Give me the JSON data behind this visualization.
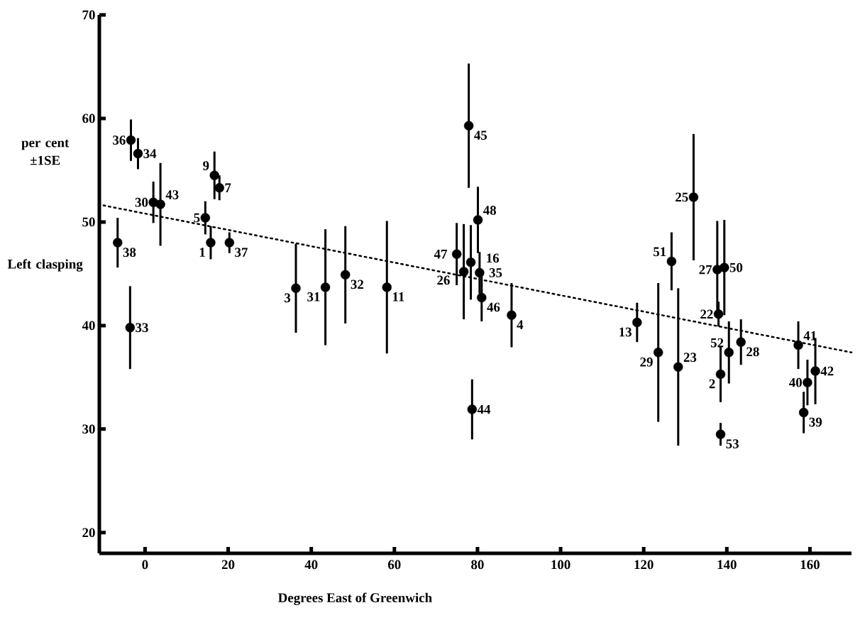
{
  "chart_data": {
    "type": "scatter",
    "xlabel": "Degrees East of Greenwich",
    "ylabel": "per cent ±1SE",
    "xlim": [
      -11,
      170
    ],
    "ylim": [
      18,
      70
    ],
    "xticks": [
      0,
      20,
      40,
      60,
      80,
      100,
      120,
      140,
      160
    ],
    "yticks": [
      20,
      30,
      40,
      50,
      60,
      70
    ],
    "marker": "circle",
    "series": [
      {
        "type": "scatter",
        "color": "#000000",
        "x": [
          -3.4,
          -1.7,
          2.0,
          3.7,
          -6.6,
          -3.6,
          16.7,
          17.9,
          14.5,
          15.8,
          20.3,
          36.3,
          43.4,
          48.2,
          58.2,
          77.9,
          80.1,
          75.0,
          76.7,
          78.4,
          80.5,
          81.0,
          78.7,
          88.2,
          132.0,
          126.7,
          137.7,
          139.4,
          138.0,
          118.4,
          123.5,
          128.3,
          140.5,
          138.5,
          143.4,
          138.5,
          157.2,
          161.3,
          159.4,
          158.5
        ],
        "values": [
          57.9,
          56.6,
          51.9,
          51.7,
          48.0,
          39.8,
          54.5,
          53.3,
          50.4,
          48.0,
          48.0,
          43.6,
          43.7,
          44.9,
          43.7,
          59.3,
          50.2,
          46.9,
          45.2,
          46.1,
          45.1,
          42.7,
          31.9,
          41.0,
          52.4,
          46.2,
          45.4,
          45.6,
          41.1,
          40.3,
          37.4,
          36.0,
          37.4,
          35.3,
          38.4,
          29.5,
          38.1,
          35.6,
          34.5,
          31.6
        ],
        "errors": [
          2.0,
          1.5,
          2.0,
          4.0,
          2.4,
          4.0,
          2.3,
          1.2,
          1.6,
          1.6,
          1.0,
          4.3,
          5.6,
          4.7,
          6.4,
          6.0,
          3.2,
          3.0,
          4.6,
          3.6,
          2.0,
          2.3,
          2.9,
          3.1,
          6.1,
          2.8,
          4.7,
          4.6,
          1.2,
          1.9,
          6.7,
          7.6,
          3.0,
          2.7,
          2.2,
          1.1,
          2.3,
          3.2,
          2.2,
          2.0
        ]
      },
      {
        "type": "line",
        "color": "#000000",
        "line_style": "dotted",
        "marker": "none",
        "x": [
          -10,
          170
        ],
        "values": [
          51.6,
          37.4
        ]
      }
    ],
    "annotations": [
      {
        "text": "36",
        "x": -3.4,
        "y": 57.9
      },
      {
        "text": "34",
        "x": -1.7,
        "y": 56.6
      },
      {
        "text": "30",
        "x": 2.0,
        "y": 51.9
      },
      {
        "text": "43",
        "x": 3.7,
        "y": 51.7
      },
      {
        "text": "38",
        "x": -6.6,
        "y": 48.0
      },
      {
        "text": "33",
        "x": -3.6,
        "y": 39.8
      },
      {
        "text": "9",
        "x": 16.7,
        "y": 54.5
      },
      {
        "text": "7",
        "x": 17.9,
        "y": 53.3
      },
      {
        "text": "5",
        "x": 14.5,
        "y": 50.4
      },
      {
        "text": "1",
        "x": 15.8,
        "y": 48.0
      },
      {
        "text": "37",
        "x": 20.3,
        "y": 48.0
      },
      {
        "text": "3",
        "x": 36.3,
        "y": 43.6
      },
      {
        "text": "31",
        "x": 43.4,
        "y": 43.7
      },
      {
        "text": "32",
        "x": 48.2,
        "y": 44.9
      },
      {
        "text": "11",
        "x": 58.2,
        "y": 43.7
      },
      {
        "text": "45",
        "x": 77.9,
        "y": 59.3
      },
      {
        "text": "48",
        "x": 80.1,
        "y": 50.2
      },
      {
        "text": "47",
        "x": 75.0,
        "y": 46.9
      },
      {
        "text": "26",
        "x": 76.7,
        "y": 45.2
      },
      {
        "text": "16",
        "x": 78.4,
        "y": 46.1
      },
      {
        "text": "35",
        "x": 80.5,
        "y": 45.1
      },
      {
        "text": "46",
        "x": 81.0,
        "y": 42.7
      },
      {
        "text": "44",
        "x": 78.7,
        "y": 31.9
      },
      {
        "text": "4",
        "x": 88.2,
        "y": 41.0
      },
      {
        "text": "25",
        "x": 132.0,
        "y": 52.4
      },
      {
        "text": "51",
        "x": 126.7,
        "y": 46.2
      },
      {
        "text": "27",
        "x": 137.7,
        "y": 45.4
      },
      {
        "text": "50",
        "x": 139.4,
        "y": 45.6
      },
      {
        "text": "22",
        "x": 138.0,
        "y": 41.1
      },
      {
        "text": "13",
        "x": 118.4,
        "y": 40.3
      },
      {
        "text": "29",
        "x": 123.5,
        "y": 37.4
      },
      {
        "text": "23",
        "x": 128.3,
        "y": 36.0
      },
      {
        "text": "52",
        "x": 140.5,
        "y": 37.4
      },
      {
        "text": "2",
        "x": 138.5,
        "y": 35.3
      },
      {
        "text": "28",
        "x": 143.4,
        "y": 38.4
      },
      {
        "text": "53",
        "x": 138.5,
        "y": 29.5
      },
      {
        "text": "41",
        "x": 157.2,
        "y": 38.1
      },
      {
        "text": "42",
        "x": 161.3,
        "y": 35.6
      },
      {
        "text": "40",
        "x": 159.4,
        "y": 34.5
      },
      {
        "text": "39",
        "x": 158.5,
        "y": 31.6
      },
      "Left clasping"
    ]
  }
}
